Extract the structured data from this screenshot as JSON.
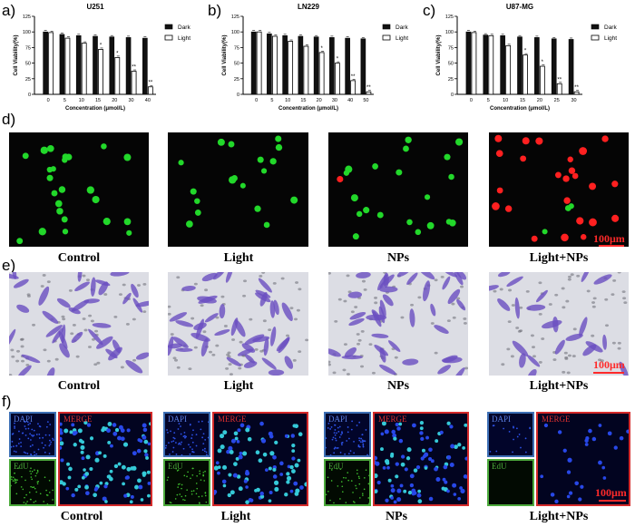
{
  "panels": {
    "a": "a)",
    "b": "b)",
    "c": "c)",
    "d": "d)",
    "e": "e)",
    "f": "f)"
  },
  "chart_data": [
    {
      "type": "bar",
      "title": "U251",
      "xlabel": "Concentration (μmol/L)",
      "ylabel": "Cell Viability(%)",
      "ylim": [
        0,
        125
      ],
      "yticks": [
        0,
        25,
        50,
        75,
        100,
        125
      ],
      "categories": [
        "0",
        "5",
        "10",
        "15",
        "20",
        "30",
        "40"
      ],
      "series": [
        {
          "name": "Dark",
          "values": [
            100,
            96,
            94,
            93,
            92,
            91,
            90
          ]
        },
        {
          "name": "Light",
          "values": [
            99,
            90,
            82,
            72,
            59,
            37,
            12
          ]
        }
      ],
      "significance": [
        "",
        "",
        "",
        "*",
        "*",
        "**",
        "**"
      ],
      "legend": "top-right"
    },
    {
      "type": "bar",
      "title": "LN229",
      "xlabel": "Concentration (μmol/L)",
      "ylabel": "Cell Viability(%)",
      "ylim": [
        0,
        125
      ],
      "yticks": [
        0,
        25,
        50,
        75,
        100,
        125
      ],
      "categories": [
        "0",
        "5",
        "10",
        "15",
        "20",
        "30",
        "40",
        "50"
      ],
      "series": [
        {
          "name": "Dark",
          "values": [
            100,
            97,
            94,
            93,
            92,
            91,
            90,
            89
          ]
        },
        {
          "name": "Light",
          "values": [
            100,
            93,
            85,
            77,
            67,
            50,
            22,
            4
          ]
        }
      ],
      "significance": [
        "",
        "",
        "",
        "",
        "*",
        "*",
        "**",
        "**"
      ],
      "legend": "top-right"
    },
    {
      "type": "bar",
      "title": "U87-MG",
      "xlabel": "Concentration (μmol/L)",
      "ylabel": "Cell Viability(%)",
      "ylim": [
        0,
        125
      ],
      "yticks": [
        0,
        25,
        50,
        75,
        100,
        125
      ],
      "categories": [
        "0",
        "5",
        "10",
        "15",
        "20",
        "25",
        "30"
      ],
      "series": [
        {
          "name": "Dark",
          "values": [
            100,
            95,
            94,
            92,
            91,
            89,
            88
          ]
        },
        {
          "name": "Light",
          "values": [
            99,
            94,
            78,
            63,
            45,
            17,
            4
          ]
        }
      ],
      "significance": [
        "",
        "",
        "",
        "*",
        "*",
        "**",
        "**"
      ],
      "legend": "top-right"
    }
  ],
  "colors": {
    "dark_bar": "#111111",
    "light_bar": "#ffffff",
    "green_cell": "#22d82a",
    "red_cell": "#ff2020",
    "crystal_violet": "#6a4fc0",
    "dapi_frame": "#3d6fb5",
    "edu_frame": "#4caa3c",
    "merge_frame": "#d42a2a"
  },
  "row_d": {
    "captions": [
      "Control",
      "Light",
      "NPs",
      "Light+NPs"
    ],
    "scale": "100μm"
  },
  "row_e": {
    "captions": [
      "Control",
      "Light",
      "NPs",
      "Light+NPs"
    ],
    "scale": "100μm"
  },
  "row_f": {
    "captions": [
      "Control",
      "Light",
      "NPs",
      "Light+NPs"
    ],
    "dapi": "DAPI",
    "edu": "EdU",
    "merge": "MERGE",
    "scale": "100μm"
  }
}
